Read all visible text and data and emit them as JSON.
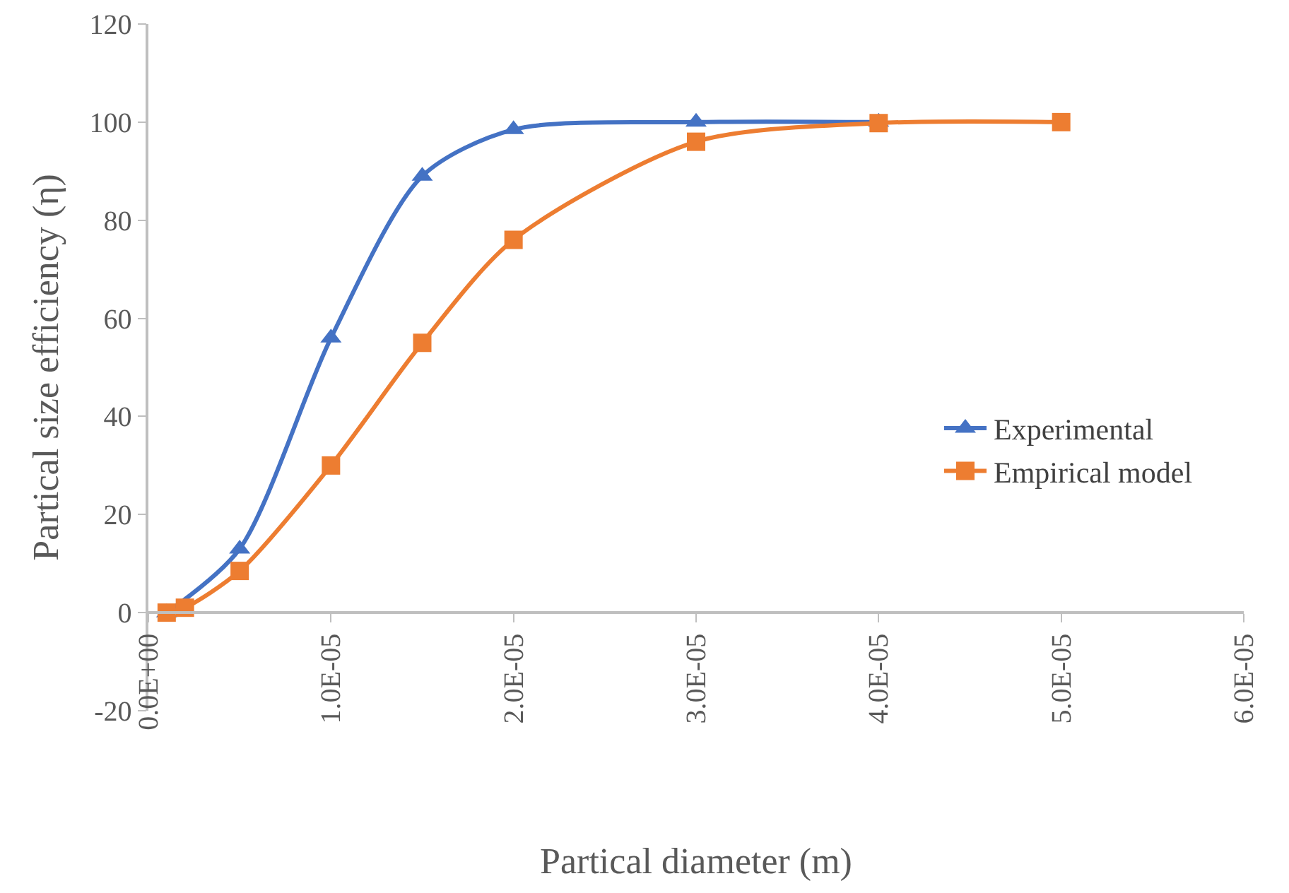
{
  "chart_data": {
    "type": "line",
    "xlabel": "Partical diameter (m)",
    "ylabel": "Partical size efficiency (η)",
    "xlim": [
      0,
      6e-05
    ],
    "xticks": [
      {
        "value": 0,
        "label": "0.0E+00"
      },
      {
        "value": 1e-05,
        "label": "1.0E-05"
      },
      {
        "value": 2e-05,
        "label": "2.0E-05"
      },
      {
        "value": 3e-05,
        "label": "3.0E-05"
      },
      {
        "value": 4e-05,
        "label": "4.0E-05"
      },
      {
        "value": 5e-05,
        "label": "5.0E-05"
      },
      {
        "value": 6e-05,
        "label": "6.0E-05"
      }
    ],
    "ylim": [
      -20,
      120
    ],
    "yticks": [
      -20,
      0,
      20,
      40,
      60,
      80,
      100,
      120
    ],
    "grid": false,
    "legend": "right",
    "line_style": "solid",
    "x": [
      1e-06,
      2e-06,
      5e-06,
      1e-05,
      1.5e-05,
      2e-05,
      3e-05,
      4e-05,
      5e-05
    ],
    "series": [
      {
        "name": "Experimental",
        "color": "#4472c4",
        "marker": "triangle",
        "values": [
          0,
          null,
          13,
          56,
          89,
          98.5,
          100,
          100,
          null
        ]
      },
      {
        "name": "Empirical model",
        "color": "#ed7d31",
        "marker": "square",
        "values": [
          0,
          1,
          8.5,
          30,
          55,
          76,
          96,
          99.8,
          100
        ]
      }
    ]
  }
}
